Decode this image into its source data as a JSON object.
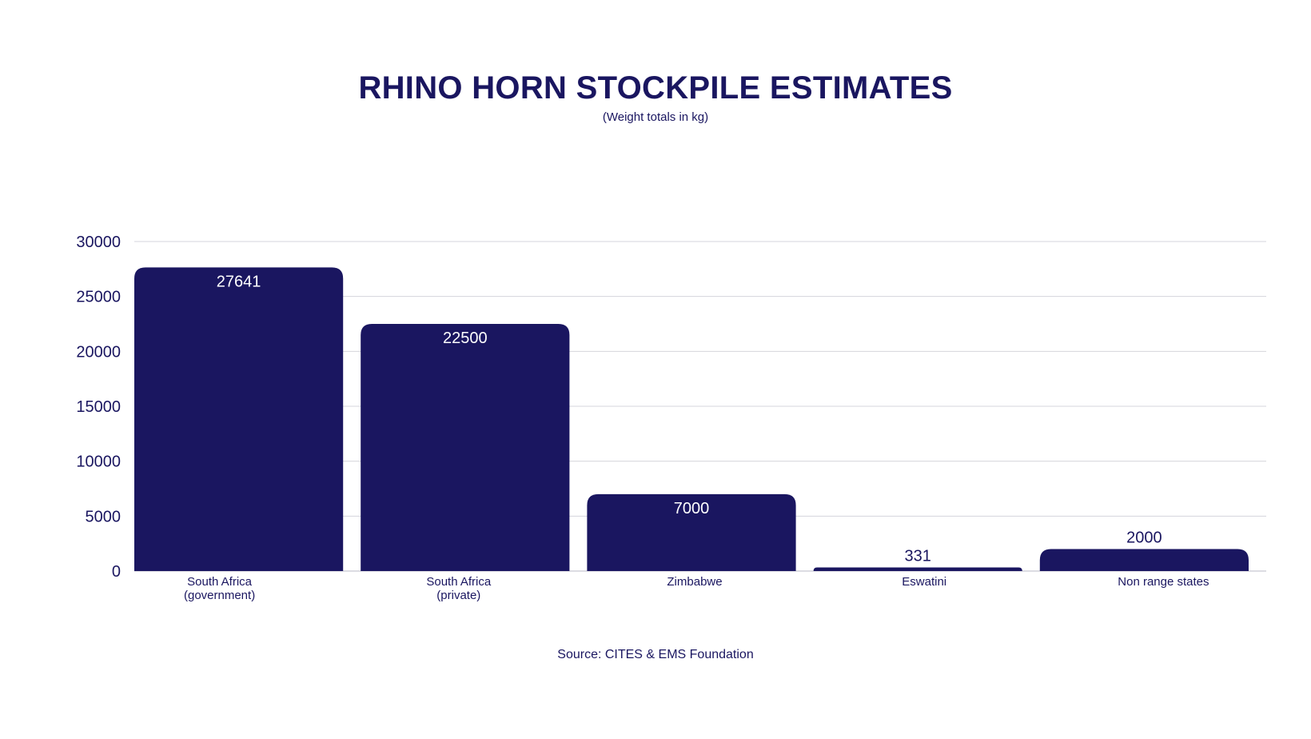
{
  "chart_data": {
    "type": "bar",
    "title": "RHINO HORN STOCKPILE ESTIMATES",
    "subtitle": "(Weight totals in kg)",
    "source": "Source: CITES & EMS Foundation",
    "categories": [
      [
        "South Africa",
        "(government)"
      ],
      [
        "South Africa",
        "(private)"
      ],
      [
        "Zimbabwe"
      ],
      [
        "Eswatini"
      ],
      [
        "Non range states"
      ]
    ],
    "values": [
      27641,
      22500,
      7000,
      331,
      2000
    ],
    "value_labels": [
      "27641",
      "22500",
      "7000",
      "331",
      "2000"
    ],
    "ylim": [
      0,
      30000
    ],
    "yticks": [
      0,
      5000,
      10000,
      15000,
      20000,
      25000,
      30000
    ],
    "grid": true,
    "legend": "none",
    "colors": {
      "bar": "#1a1660",
      "text": "#1a1660",
      "grid": "#d4d4dc",
      "label_inside": "#ffffff"
    }
  }
}
